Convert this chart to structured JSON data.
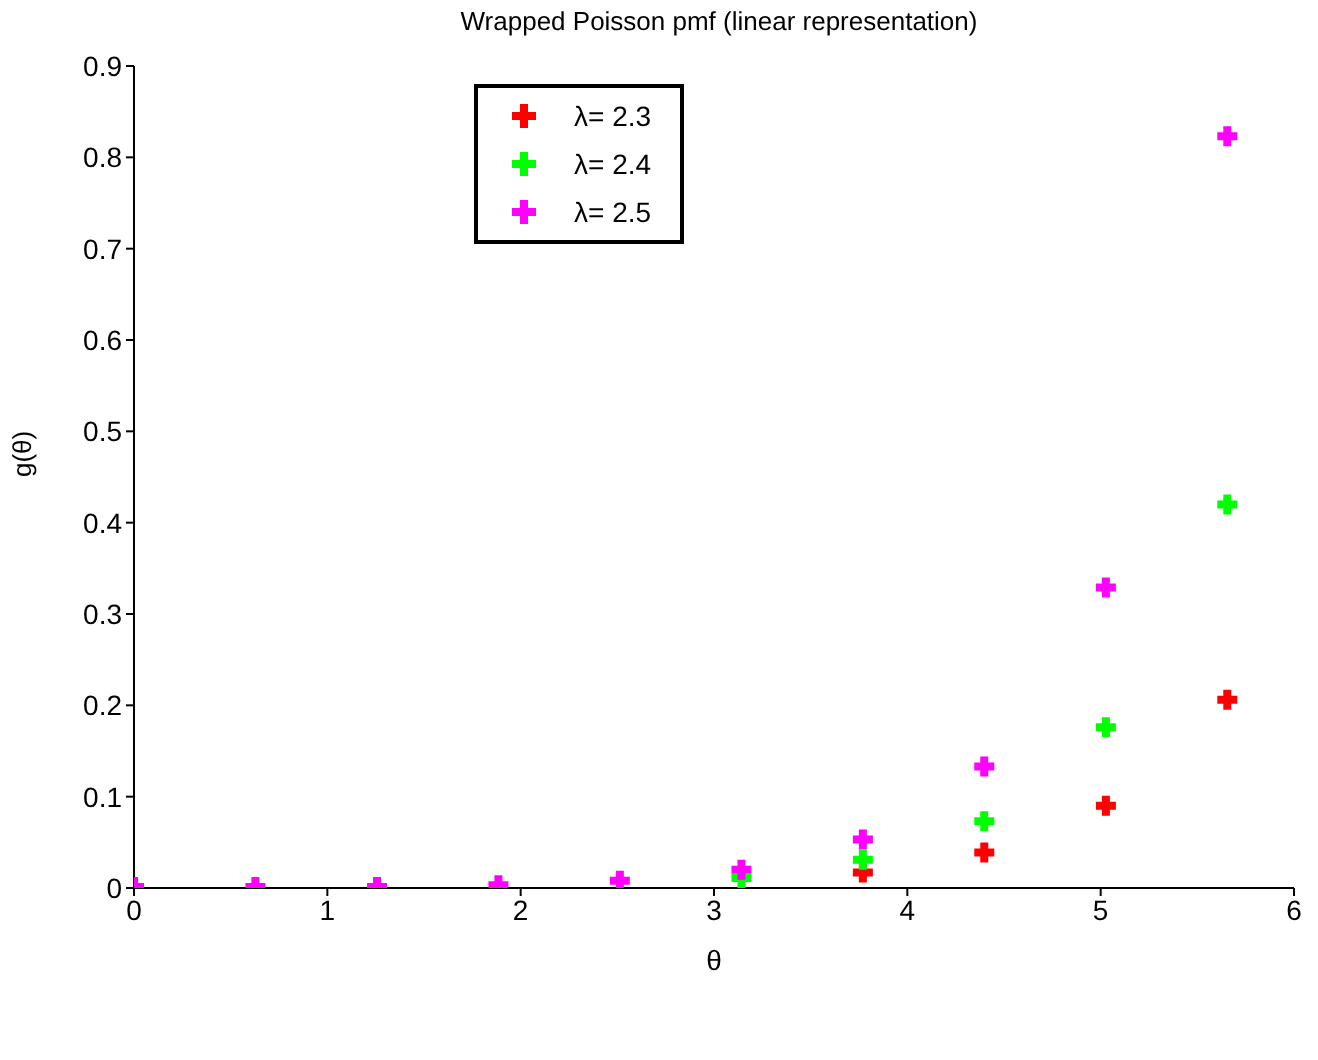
{
  "chart_data": {
    "type": "scatter",
    "title": "Wrapped Poisson pmf (linear representation)",
    "xlabel": "θ",
    "ylabel": "g(θ)",
    "x": [
      0,
      0.628,
      1.257,
      1.885,
      2.513,
      3.142,
      3.77,
      4.398,
      5.027,
      5.655
    ],
    "series": [
      {
        "name": "λ= 2.3",
        "color": "#ff0000",
        "values": [
          null,
          null,
          null,
          null,
          null,
          null,
          0.017,
          0.039,
          0.09,
          0.206
        ]
      },
      {
        "name": "λ= 2.4",
        "color": "#00ff00",
        "values": [
          null,
          null,
          null,
          null,
          null,
          0.011,
          0.031,
          0.073,
          0.176,
          0.42
        ]
      },
      {
        "name": "λ= 2.5",
        "color": "#ff00ff",
        "values": [
          0.001,
          0.001,
          0.001,
          0.003,
          0.008,
          0.02,
          0.053,
          0.133,
          0.329,
          0.823
        ]
      }
    ],
    "xlim": [
      0,
      6
    ],
    "xticks": [
      0,
      1,
      2,
      3,
      4,
      5,
      6
    ],
    "ylim": [
      0,
      0.9
    ],
    "yticks": [
      0,
      0.1,
      0.2,
      0.3,
      0.4,
      0.5,
      0.6,
      0.7,
      0.8,
      0.9
    ],
    "grid": false,
    "legend": "top",
    "marker": "cross"
  }
}
